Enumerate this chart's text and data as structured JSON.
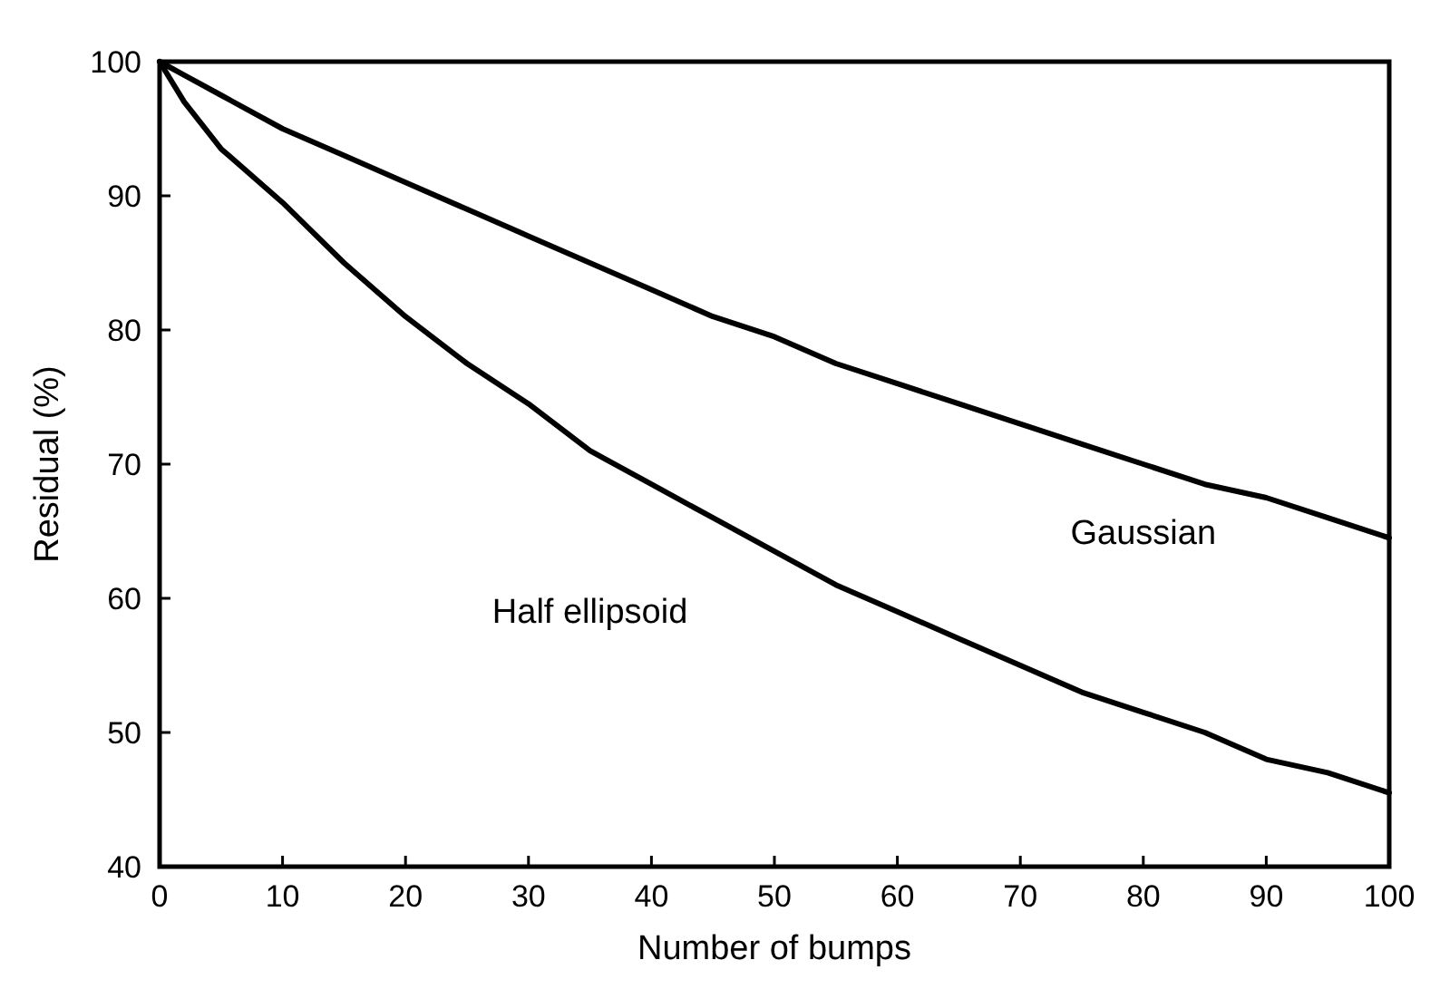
{
  "chart_data": {
    "type": "line",
    "xlabel": "Number of bumps",
    "ylabel": "Residual (%)",
    "x": [
      0,
      2,
      5,
      10,
      15,
      20,
      25,
      30,
      35,
      40,
      45,
      50,
      55,
      60,
      65,
      70,
      75,
      80,
      85,
      90,
      95,
      100
    ],
    "series": [
      {
        "name": "Gaussian",
        "color": "#000000",
        "values": [
          100,
          99,
          97.5,
          95,
          93,
          91,
          89,
          87,
          85,
          83,
          81,
          79.5,
          77.5,
          76,
          74.5,
          73,
          71.5,
          70,
          68.5,
          67.5,
          66,
          64.5
        ]
      },
      {
        "name": "Half ellipsoid",
        "color": "#000000",
        "values": [
          100,
          97,
          93.5,
          89.5,
          85,
          81,
          77.5,
          74.5,
          71,
          68.5,
          66,
          63.5,
          61,
          59,
          57,
          55,
          53,
          51.5,
          50,
          48,
          47,
          45.5
        ]
      }
    ],
    "xlim": [
      0,
      100
    ],
    "ylim": [
      40,
      100
    ],
    "xticks": [
      0,
      10,
      20,
      30,
      40,
      50,
      60,
      70,
      80,
      90,
      100
    ],
    "yticks": [
      40,
      50,
      60,
      70,
      80,
      90,
      100
    ],
    "grid": false,
    "marker": "none",
    "line_style": "solid"
  }
}
